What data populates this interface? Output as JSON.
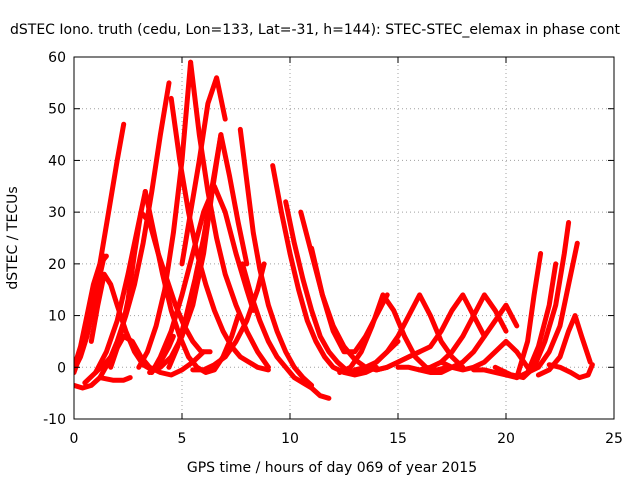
{
  "chart_data": {
    "type": "scatter",
    "title": "dSTEC Iono. truth (cedu, Lon=133, Lat=-31, h=144): STEC-STEC_elemax in phase cont",
    "xlabel": "GPS time / hours of day 069 of year 2015",
    "ylabel": "dSTEC  / TECUs",
    "xlim": [
      0,
      25
    ],
    "ylim": [
      -10,
      60
    ],
    "xticks": [
      0,
      5,
      10,
      15,
      20,
      25
    ],
    "yticks": [
      -10,
      0,
      10,
      20,
      30,
      40,
      50,
      60
    ],
    "grid": true,
    "marker": "+",
    "color": "#ff0000",
    "series": [
      {
        "x": [
          0.0,
          0.3,
          0.6,
          0.9,
          1.2,
          1.6,
          2.0,
          2.3
        ],
        "y": [
          -0.5,
          2,
          6,
          12,
          20,
          30,
          40,
          47
        ]
      },
      {
        "x": [
          0.0,
          0.4,
          0.8,
          1.2,
          1.6,
          2.0,
          2.4,
          2.8,
          3.2,
          3.6,
          4.0,
          4.4
        ],
        "y": [
          -3.5,
          -4,
          -3.5,
          -2,
          1,
          5,
          10,
          16,
          24,
          34,
          45,
          55
        ]
      },
      {
        "x": [
          0.0,
          0.3,
          0.6,
          0.9,
          1.2,
          1.5
        ],
        "y": [
          0,
          4,
          10,
          16,
          20,
          21.5
        ]
      },
      {
        "x": [
          0.0,
          0.5,
          1.0,
          1.4
        ],
        "y": [
          -1,
          5,
          14,
          21.5
        ]
      },
      {
        "x": [
          0.8,
          1.1,
          1.4,
          1.7,
          2.0,
          2.4,
          2.8,
          3.2,
          3.6,
          4.0,
          4.4,
          4.6
        ],
        "y": [
          5,
          12,
          18,
          16,
          12,
          7,
          3,
          0.5,
          -0.5,
          1,
          4,
          6
        ]
      },
      {
        "x": [
          0.5,
          1.0,
          1.5,
          1.9,
          2.3,
          2.7,
          3.1,
          3.5,
          4.0,
          4.5,
          5.0,
          5.5,
          6.0
        ],
        "y": [
          -3,
          -1,
          1,
          3,
          6,
          5,
          2,
          0,
          -1,
          -1.5,
          -0.5,
          1,
          3
        ]
      },
      {
        "x": [
          1.0,
          1.5,
          2.0,
          2.5,
          3.0,
          3.3
        ],
        "y": [
          -1,
          3,
          9,
          18,
          28,
          34
        ]
      },
      {
        "x": [
          1.7,
          2.1,
          2.5,
          2.8,
          3.1,
          3.5,
          3.9,
          4.3,
          4.7,
          5.1,
          5.5,
          5.9,
          6.3
        ],
        "y": [
          0,
          5,
          13,
          22,
          30,
          28,
          22,
          17,
          12,
          8,
          5,
          3,
          3
        ]
      },
      {
        "x": [
          1.2,
          1.8,
          2.3,
          2.6
        ],
        "y": [
          -2,
          -2.5,
          -2.5,
          -2
        ]
      },
      {
        "x": [
          3.3,
          3.7,
          4.1,
          4.5,
          4.9,
          5.3,
          5.7,
          6.1,
          6.5,
          6.9,
          7.3,
          7.6
        ],
        "y": [
          34,
          26,
          18,
          11,
          6,
          2,
          0,
          -1,
          -0.5,
          2,
          6,
          10
        ]
      },
      {
        "x": [
          3.6,
          4.0,
          4.5,
          5.0,
          5.5,
          6.0,
          6.5,
          7.0,
          7.5,
          8.0,
          8.3
        ],
        "y": [
          -1,
          2,
          7,
          14,
          22,
          30,
          35,
          30,
          22,
          15,
          11
        ]
      },
      {
        "x": [
          4.5,
          4.9,
          5.3,
          5.7,
          6.1,
          6.5,
          6.9,
          7.3,
          7.7,
          8.1,
          8.5,
          9.0
        ],
        "y": [
          52,
          40,
          30,
          22,
          16,
          11,
          7,
          4,
          2,
          1,
          0,
          -0.5
        ]
      },
      {
        "x": [
          3.0,
          3.4,
          3.8,
          4.2,
          4.6,
          5.0,
          5.4
        ],
        "y": [
          0,
          3,
          8,
          15,
          26,
          40,
          59
        ]
      },
      {
        "x": [
          5.4,
          5.8,
          6.2,
          6.6,
          7.0,
          7.5,
          8.0,
          8.5,
          9.0
        ],
        "y": [
          59,
          45,
          34,
          25,
          18,
          12,
          7,
          3,
          0
        ]
      },
      {
        "x": [
          4.4,
          4.8,
          5.2,
          5.6,
          6.0,
          6.4,
          6.8,
          7.2,
          7.6,
          8.0
        ],
        "y": [
          0,
          4,
          10,
          17,
          25,
          35,
          45,
          37,
          28,
          20
        ]
      },
      {
        "x": [
          5.0,
          5.4,
          5.8,
          6.2,
          6.6,
          7.0
        ],
        "y": [
          20,
          30,
          40,
          51,
          56,
          48
        ]
      },
      {
        "x": [
          3.5,
          4.0,
          4.5,
          5.0,
          5.5,
          6.0,
          6.4,
          6.8
        ],
        "y": [
          -1,
          0,
          2,
          6,
          12,
          22,
          34,
          45
        ]
      },
      {
        "x": [
          7.7,
          8.0,
          8.3,
          8.6,
          9.0,
          9.4,
          9.8,
          10.2,
          10.6,
          11.0
        ],
        "y": [
          46,
          36,
          26,
          19,
          12,
          7,
          3,
          0,
          -2,
          -3.5
        ]
      },
      {
        "x": [
          5.5,
          6.0,
          6.5,
          7.0,
          7.5,
          8.0,
          8.5,
          8.8
        ],
        "y": [
          -0.5,
          -0.5,
          0.5,
          2,
          5,
          9,
          15,
          20
        ]
      },
      {
        "x": [
          7.8,
          8.2,
          8.6,
          9.0,
          9.4,
          9.8,
          10.2,
          10.6,
          11.0,
          11.4,
          11.8
        ],
        "y": [
          20,
          14,
          9,
          5,
          2,
          0,
          -2,
          -3,
          -4,
          -5.5,
          -6
        ]
      },
      {
        "x": [
          9.2,
          9.6,
          10.0,
          10.4,
          10.8,
          11.2,
          11.6,
          12.0,
          12.5,
          13.0,
          13.5,
          14.0
        ],
        "y": [
          39,
          30,
          22,
          15,
          9,
          5,
          2,
          0,
          -1,
          -1.5,
          -1,
          0
        ]
      },
      {
        "x": [
          9.8,
          10.2,
          10.6,
          11.0,
          11.4,
          11.8,
          12.2,
          12.6,
          13.0,
          13.5,
          14.0,
          14.5,
          15.0
        ],
        "y": [
          32,
          24,
          17,
          11,
          6,
          3,
          1,
          -0.5,
          -1,
          -0.5,
          1,
          3,
          5
        ]
      },
      {
        "x": [
          10.5,
          11.0,
          11.5,
          12.0,
          12.5,
          13.0,
          13.5,
          14.0,
          14.5,
          15.0,
          15.5,
          16.0
        ],
        "y": [
          30,
          22,
          14,
          8,
          4,
          1.5,
          0,
          -0.5,
          0,
          1,
          2,
          3
        ]
      },
      {
        "x": [
          11.0,
          11.5,
          12.0,
          12.5,
          13.0,
          13.5,
          14.0,
          14.5
        ],
        "y": [
          23,
          14,
          7,
          3,
          3,
          6,
          10,
          14
        ]
      },
      {
        "x": [
          12.3,
          12.8,
          13.3,
          13.8,
          14.3,
          14.8,
          15.3,
          15.8,
          16.3,
          16.8,
          17.3
        ],
        "y": [
          -1,
          0,
          3,
          8,
          14,
          11,
          6,
          2,
          0,
          -0.5,
          0
        ]
      },
      {
        "x": [
          13.0,
          13.5,
          14.0,
          14.5,
          15.0,
          15.5,
          16.0,
          16.5,
          17.0,
          17.5,
          18.0
        ],
        "y": [
          -0.5,
          0,
          1,
          3,
          6,
          10,
          14,
          10,
          5,
          2,
          0
        ]
      },
      {
        "x": [
          14.0,
          14.5,
          15.0,
          15.5,
          16.0,
          16.5,
          17.0,
          17.5,
          18.0,
          18.5,
          19.0
        ],
        "y": [
          -0.5,
          0,
          1,
          2,
          3,
          4,
          7,
          11,
          14,
          10,
          6
        ]
      },
      {
        "x": [
          15.0,
          15.5,
          16.0,
          16.5,
          17.0,
          17.5,
          18.0,
          18.5,
          19.0,
          19.5,
          20.0
        ],
        "y": [
          0,
          0,
          -0.5,
          0,
          1,
          3,
          6,
          10,
          14,
          11,
          7
        ]
      },
      {
        "x": [
          16.0,
          16.5,
          17.0,
          17.5,
          18.0,
          18.5,
          19.0,
          19.5,
          20.0,
          20.5
        ],
        "y": [
          -0.5,
          -1,
          -1,
          0,
          1,
          3,
          6,
          9,
          12,
          8
        ]
      },
      {
        "x": [
          17.0,
          17.5,
          18.0,
          18.5,
          19.0,
          19.5,
          20.0,
          20.5,
          21.0
        ],
        "y": [
          1,
          0,
          -0.5,
          0,
          1,
          3,
          5,
          3,
          0
        ]
      },
      {
        "x": [
          18.5,
          19.0,
          19.5,
          20.0,
          20.5,
          21.0,
          21.3,
          21.6
        ],
        "y": [
          -0.5,
          -0.5,
          -1,
          -1.5,
          -2,
          5,
          14,
          22
        ]
      },
      {
        "x": [
          19.5,
          20.0,
          20.5,
          21.0,
          21.5,
          22.0,
          22.3
        ],
        "y": [
          0,
          -1,
          -2,
          -1,
          4,
          12,
          20
        ]
      },
      {
        "x": [
          20.3,
          20.8,
          21.3,
          21.8,
          22.3,
          22.7,
          22.9
        ],
        "y": [
          -1.5,
          -2,
          0,
          5,
          12,
          22,
          28
        ]
      },
      {
        "x": [
          21.0,
          21.5,
          22.0,
          22.5,
          22.9,
          23.3
        ],
        "y": [
          -1,
          0,
          3,
          8,
          16,
          24
        ]
      },
      {
        "x": [
          21.5,
          22.0,
          22.5,
          22.9,
          23.2,
          23.5,
          23.9
        ],
        "y": [
          -1.5,
          -0.5,
          2,
          7,
          10,
          6,
          1
        ]
      },
      {
        "x": [
          22.0,
          22.5,
          23.0,
          23.4,
          23.8,
          24.0
        ],
        "y": [
          0.5,
          0,
          -1,
          -2,
          -1.5,
          0.5
        ]
      }
    ]
  }
}
